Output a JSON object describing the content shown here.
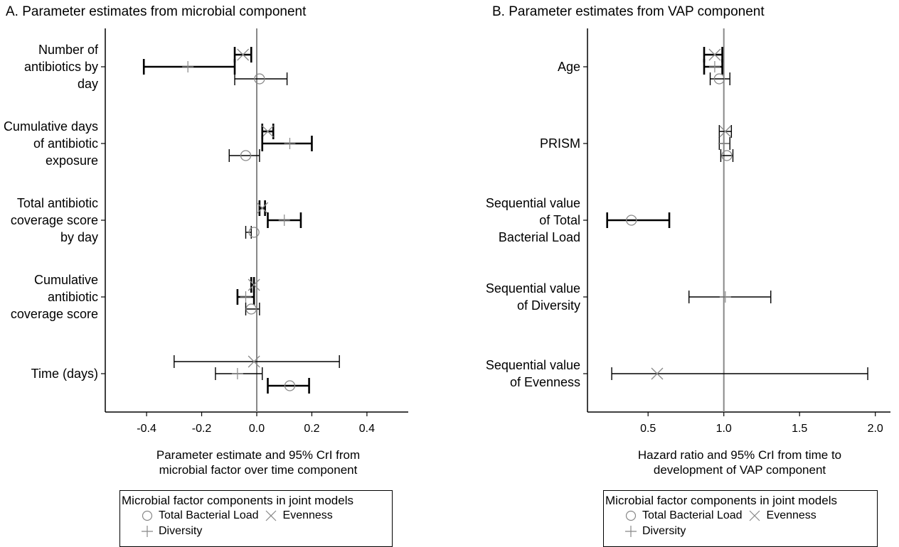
{
  "chart_data": [
    {
      "type": "forest",
      "title": "A. Parameter estimates from microbial component",
      "xlabel": "Parameter estimate and 95% CrI from\nmicrobial factor over time component",
      "xlim": [
        -0.55,
        0.55
      ],
      "xticks": [
        -0.4,
        -0.2,
        0.0,
        0.2,
        0.4
      ],
      "xtick_labels": [
        "-0.4",
        "-0.2",
        "0.0",
        "0.2",
        "0.4"
      ],
      "reference_line": 0,
      "rows": [
        {
          "label": "Number of antibiotics by day",
          "estimates": [
            {
              "series": "Evenness",
              "est": -0.05,
              "lo": -0.08,
              "hi": -0.02
            },
            {
              "series": "Diversity",
              "est": -0.25,
              "lo": -0.41,
              "hi": -0.08
            },
            {
              "series": "Total Bacterial Load",
              "est": 0.01,
              "lo": -0.08,
              "hi": 0.11
            }
          ]
        },
        {
          "label": "Cumulative days of antibiotic exposure",
          "estimates": [
            {
              "series": "Evenness",
              "est": 0.04,
              "lo": 0.02,
              "hi": 0.06
            },
            {
              "series": "Diversity",
              "est": 0.12,
              "lo": 0.02,
              "hi": 0.2
            },
            {
              "series": "Total Bacterial Load",
              "est": -0.04,
              "lo": -0.1,
              "hi": 0.01
            }
          ]
        },
        {
          "label": "Total antibiotic coverage score by day",
          "estimates": [
            {
              "series": "Evenness",
              "est": 0.02,
              "lo": 0.01,
              "hi": 0.03
            },
            {
              "series": "Diversity",
              "est": 0.1,
              "lo": 0.04,
              "hi": 0.16
            },
            {
              "series": "Total Bacterial Load",
              "est": -0.01,
              "lo": -0.04,
              "hi": -0.02
            }
          ]
        },
        {
          "label": "Cumulative antibiotic coverage score",
          "estimates": [
            {
              "series": "Evenness",
              "est": -0.01,
              "lo": -0.02,
              "hi": -0.01
            },
            {
              "series": "Diversity",
              "est": -0.04,
              "lo": -0.07,
              "hi": -0.01
            },
            {
              "series": "Total Bacterial Load",
              "est": -0.02,
              "lo": -0.04,
              "hi": 0.01
            }
          ]
        },
        {
          "label": "Time (days)",
          "estimates": [
            {
              "series": "Evenness",
              "est": -0.01,
              "lo": -0.3,
              "hi": 0.3
            },
            {
              "series": "Diversity",
              "est": -0.07,
              "lo": -0.15,
              "hi": 0.02
            },
            {
              "series": "Total Bacterial Load",
              "est": 0.12,
              "lo": 0.04,
              "hi": 0.19
            }
          ]
        }
      ]
    },
    {
      "type": "forest",
      "title": "B. Parameter estimates from VAP component",
      "xlabel": "Hazard ratio and 95% CrI from time to\ndevelopment of VAP component",
      "xlim": [
        0.1,
        2.1
      ],
      "xticks": [
        0.5,
        1.0,
        1.5,
        2.0
      ],
      "xtick_labels": [
        "0.5",
        "1.0",
        "1.5",
        "2.0"
      ],
      "reference_line": 1.0,
      "rows": [
        {
          "label": "Age",
          "estimates": [
            {
              "series": "Evenness",
              "est": 0.94,
              "lo": 0.87,
              "hi": 0.99
            },
            {
              "series": "Diversity",
              "est": 0.94,
              "lo": 0.87,
              "hi": 0.99
            },
            {
              "series": "Total Bacterial Load",
              "est": 0.97,
              "lo": 0.91,
              "hi": 1.04
            }
          ]
        },
        {
          "label": "PRISM",
          "estimates": [
            {
              "series": "Evenness",
              "est": 1.01,
              "lo": 0.97,
              "hi": 1.05
            },
            {
              "series": "Diversity",
              "est": 1.0,
              "lo": 0.97,
              "hi": 1.04
            },
            {
              "series": "Total Bacterial Load",
              "est": 1.02,
              "lo": 0.98,
              "hi": 1.06
            }
          ]
        },
        {
          "label": "Sequential value of Total Bacterial Load",
          "estimates": [
            {
              "series": "Total Bacterial Load",
              "est": 0.39,
              "lo": 0.23,
              "hi": 0.64
            }
          ]
        },
        {
          "label": "Sequential value of Diversity",
          "estimates": [
            {
              "series": "Diversity",
              "est": 1.01,
              "lo": 0.77,
              "hi": 1.31
            }
          ]
        },
        {
          "label": "Sequential value of Evenness",
          "estimates": [
            {
              "series": "Evenness",
              "est": 0.56,
              "lo": 0.26,
              "hi": 1.95
            }
          ]
        }
      ]
    }
  ],
  "legend": {
    "title": "Microbial factor components in joint models",
    "items": [
      "Total Bacterial Load",
      "Evenness",
      "Diversity"
    ]
  }
}
